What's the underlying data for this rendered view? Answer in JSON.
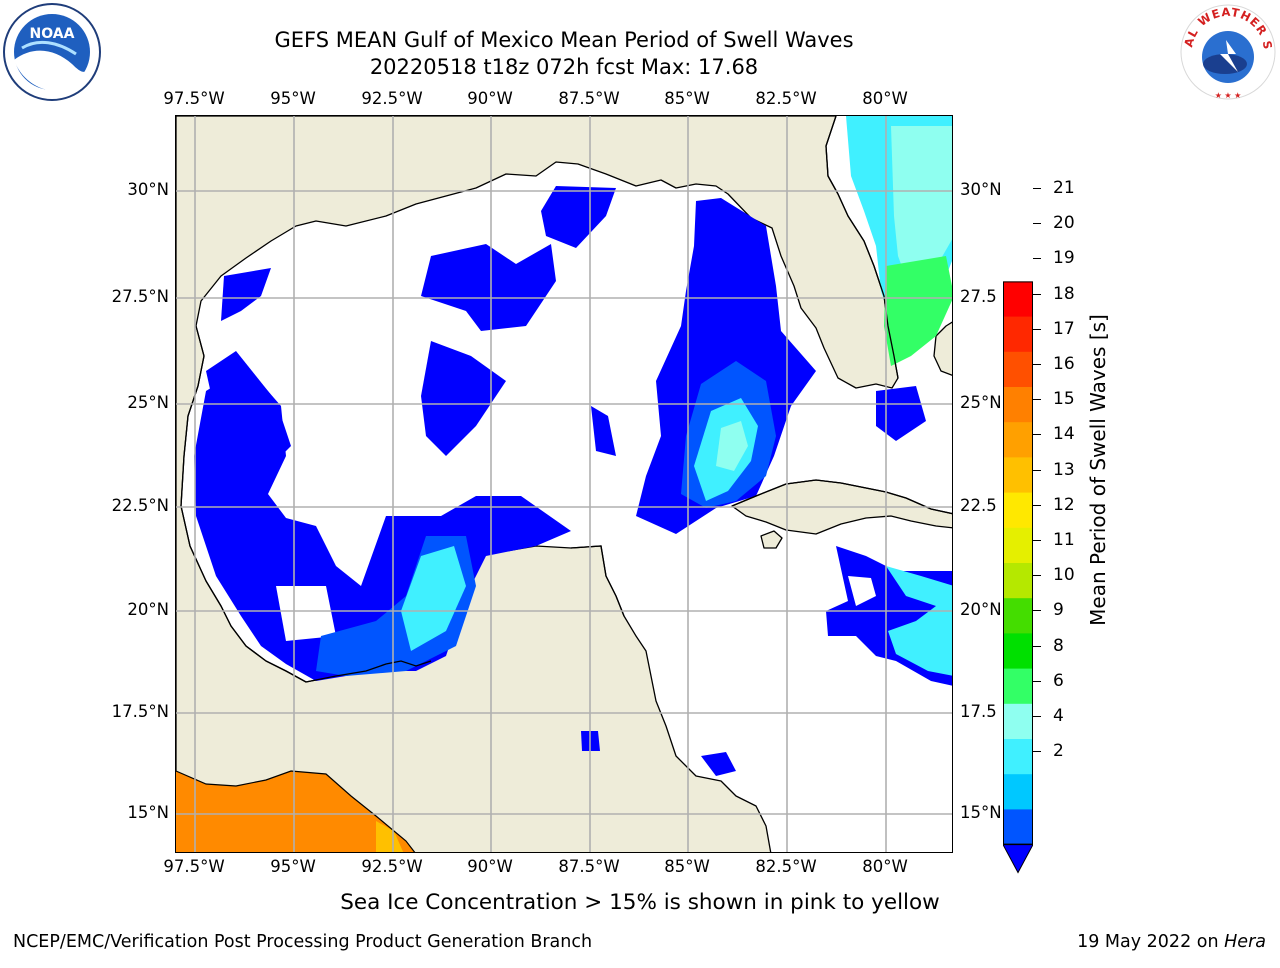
{
  "title_line1": "GEFS MEAN Gulf of Mexico Mean Period of Swell Waves",
  "title_line2": "20220518 t18z 072h fcst   Max: 17.68",
  "lon_labels": [
    "97.5°W",
    "95°W",
    "92.5°W",
    "90°W",
    "87.5°W",
    "85°W",
    "82.5°W",
    "80°W"
  ],
  "lat_labels_left": [
    "30°N",
    "27.5°N",
    "25°N",
    "22.5°N",
    "20°N",
    "17.5°N",
    "15°N"
  ],
  "lat_labels_right": [
    "30°N",
    "27.5",
    "25°N",
    "22.5",
    "20°N",
    "17.5",
    "15°N"
  ],
  "map_extent": {
    "lon_min": -97.95,
    "lon_max": -78.3,
    "lat_min": 14.0,
    "lat_max": 31.8
  },
  "colorbar": {
    "label": "Mean Period of Swell Waves [s]",
    "ticks": [
      "21",
      "20",
      "19",
      "18",
      "17",
      "16",
      "15",
      "14",
      "13",
      "12",
      "11",
      "10",
      "9",
      "8",
      "6",
      "4",
      "2"
    ],
    "levels": [
      2,
      4,
      6,
      8,
      9,
      10,
      11,
      12,
      13,
      14,
      15,
      16,
      17,
      18,
      19,
      20,
      21
    ],
    "colors": [
      "#0000ff",
      "#0055ff",
      "#00c8ff",
      "#40f0ff",
      "#8ffff0",
      "#33ff66",
      "#00e000",
      "#44dd00",
      "#b5e800",
      "#e5ef00",
      "#ffe800",
      "#ffc000",
      "#ffa000",
      "#ff8000",
      "#ff5000",
      "#ff2800",
      "#ff0000"
    ],
    "extend": "min"
  },
  "land_color": "#eeecd9",
  "note": "Sea Ice Concentration > 15% is shown in pink to yellow",
  "footer_left": "NCEP/EMC/Verification Post Processing Product Generation Branch",
  "footer_right_prefix": "19 May 2022 on ",
  "footer_right_host": "Hera",
  "logos": {
    "left": "noaa-logo",
    "right": "national-weather-service-logo"
  },
  "logo_text": {
    "noaa": "NOAA",
    "nws": "NATIONAL WEATHER SERVICE"
  }
}
